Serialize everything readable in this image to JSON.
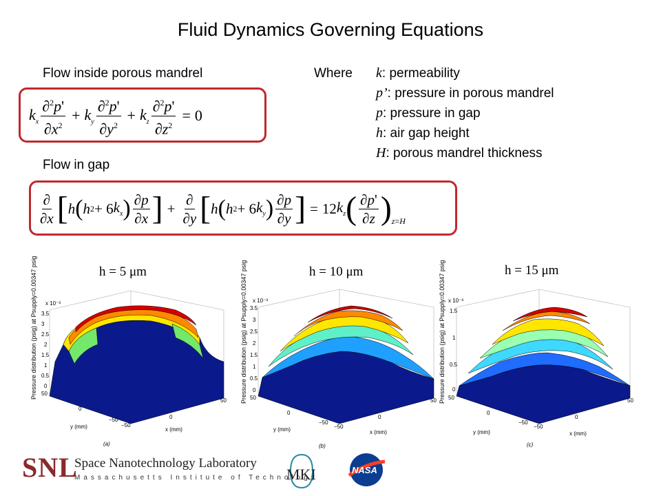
{
  "title": "Fluid Dynamics Governing Equations",
  "sections": {
    "porous_label": "Flow inside porous mandrel",
    "gap_label": "Flow in gap",
    "where_label": "Where"
  },
  "where_items": [
    {
      "symbol": "k",
      "text": ": permeability"
    },
    {
      "symbol": "p’",
      "text": ": pressure in porous mandrel"
    },
    {
      "symbol": "p",
      "text": ": pressure in gap"
    },
    {
      "symbol": "h",
      "text": ": air gap height"
    },
    {
      "symbol": "H",
      "text": ": porous mandrel thickness"
    }
  ],
  "equation_box_color": "#c0282d",
  "plots": [
    {
      "label": "h = 5 μm",
      "ylabel": "Pressure distribution (psig) at Psupply=0.00347 psig",
      "scale": "x 10⁻³",
      "zticks": [
        "3.5",
        "3",
        "2.5",
        "2",
        "1.5",
        "1",
        "0.5",
        "0"
      ],
      "caption": "(a)"
    },
    {
      "label": "h = 10 μm",
      "ylabel": "Pressure distribution (psig) at Psupply=0.00347 psig",
      "scale": "x 10⁻³",
      "zticks": [
        "3.5",
        "3",
        "2.5",
        "2",
        "1.5",
        "1",
        "0.5",
        "0"
      ],
      "caption": "(b)"
    },
    {
      "label": "h = 15 μm",
      "ylabel": "Pressure distribution (psig) at Psupply=0.00347 psig",
      "scale": "x 10⁻³",
      "zticks": [
        "1.5",
        "1",
        "0.5",
        "0"
      ],
      "caption": "(c)"
    }
  ],
  "axis": {
    "y_label": "y (mm)",
    "x_label": "x (mm)",
    "t50": "50",
    "t0": "0",
    "tm50": "−50"
  },
  "footer": {
    "snl": "SNL",
    "lab_name": "Space Nanotechnology Laboratory",
    "institute": "Massachusetts Institute of Technology",
    "mki_logo": "MKI",
    "nasa_logo": "NASA"
  }
}
